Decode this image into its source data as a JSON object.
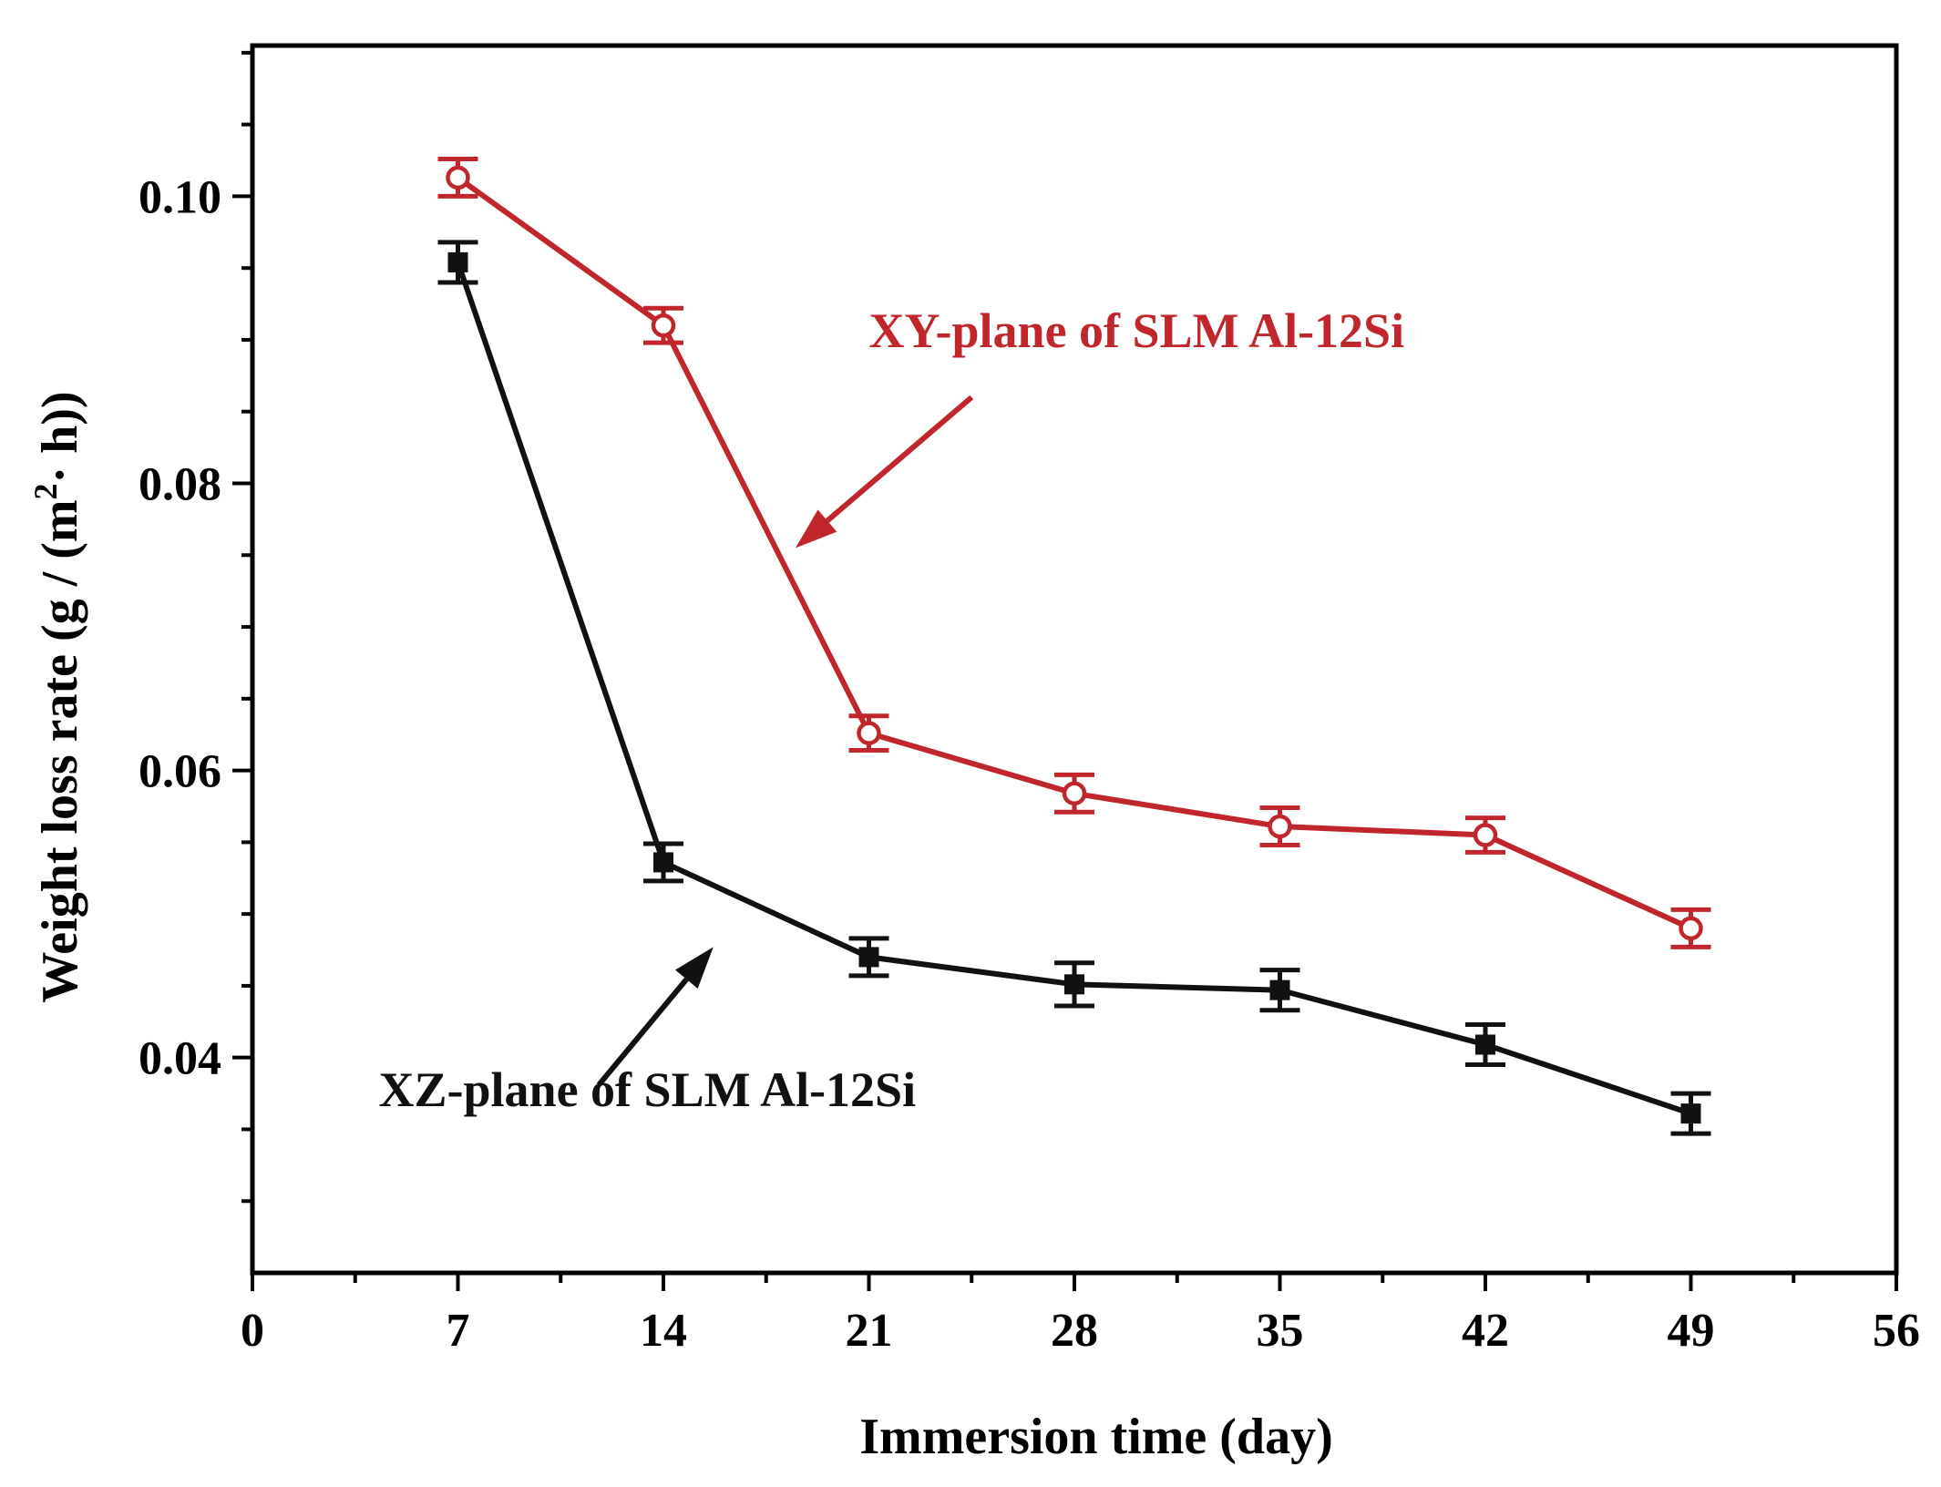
{
  "chart_data": {
    "type": "line",
    "xlabel": "Immersion time (day)",
    "ylabel": "Weight loss rate (g / (m",
    "ylabel_sup": "2",
    "ylabel_tail": "· h))",
    "xlim": [
      0,
      56
    ],
    "ylim": [
      0.025,
      0.1105
    ],
    "x_ticks": [
      0,
      7,
      14,
      21,
      28,
      35,
      42,
      49,
      56
    ],
    "x_tick_labels": [
      "0",
      "7",
      "14",
      "21",
      "28",
      "35",
      "42",
      "49",
      "56"
    ],
    "y_ticks": [
      0.04,
      0.06,
      0.08,
      0.1
    ],
    "y_tick_labels": [
      "0.04",
      "0.06",
      "0.08",
      "0.10"
    ],
    "y_minor_step": 0.005,
    "x_minor_step": 3.5,
    "grid": false,
    "series": [
      {
        "name": "XY-plane of SLM Al-12Si",
        "color": "#c0262c",
        "marker": "open-circle",
        "x": [
          7,
          14,
          21,
          28,
          35,
          42,
          49
        ],
        "y": [
          0.1013,
          0.091,
          0.0626,
          0.0584,
          0.0561,
          0.0555,
          0.049
        ],
        "yerr": [
          0.0013,
          0.0012,
          0.0012,
          0.0013,
          0.0013,
          0.0012,
          0.0013
        ]
      },
      {
        "name": "XZ-plane of SLM Al-12Si",
        "color": "#111111",
        "marker": "filled-square",
        "x": [
          7,
          14,
          21,
          28,
          35,
          42,
          49
        ],
        "y": [
          0.0954,
          0.0536,
          0.047,
          0.0451,
          0.0447,
          0.0409,
          0.0361
        ],
        "yerr": [
          0.0014,
          0.0013,
          0.0013,
          0.0015,
          0.0014,
          0.0014,
          0.0014
        ]
      }
    ],
    "annotations": [
      {
        "text": "XY-plane of SLM Al-12Si",
        "series": 0,
        "text_at": [
          21.0,
          0.0895
        ],
        "arrow_from": [
          24.5,
          0.086
        ],
        "arrow_to": [
          18.5,
          0.0755
        ]
      },
      {
        "text": "XZ-plane of SLM Al-12Si",
        "series": 1,
        "text_at": [
          4.3,
          0.0366
        ],
        "arrow_from": [
          11.8,
          0.0381
        ],
        "arrow_to": [
          15.7,
          0.0477
        ]
      }
    ]
  }
}
